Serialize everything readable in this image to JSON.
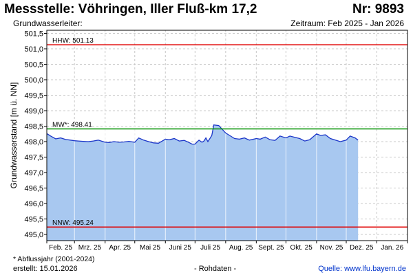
{
  "header": {
    "title": "Messstelle: Vöhringen, Iller Fluß-km 17,2",
    "number": "Nr: 9893",
    "subtitle_left": "Grundwasserleiter:",
    "subtitle_right": "Zeitraum: Feb 2025 - Jan 2026"
  },
  "footer": {
    "note": "* Abflussjahr (2001-2024)",
    "created": "erstellt:  15.01.2026",
    "raw": "- Rohdaten -",
    "source": "Quelle:  www.lfu.bayern.de"
  },
  "colors": {
    "fill": "#a8c8f0",
    "line": "#1a35c8",
    "hhw": "#e00000",
    "mw": "#009000",
    "nnw": "#e00000",
    "grid": "#c8c8c8"
  },
  "chart_data": {
    "type": "area",
    "ylabel": "Grundwasserstand [m ü. NN]",
    "ylim": [
      494.8,
      501.6
    ],
    "yticks": [
      "495,0",
      "495,5",
      "496,0",
      "496,5",
      "497,0",
      "497,5",
      "498,0",
      "498,5",
      "499,0",
      "499,5",
      "500,0",
      "500,5",
      "501,0",
      "501,5"
    ],
    "xticks": [
      "Feb. 25",
      "Mrz. 25",
      "Apr. 25",
      "Mai 25",
      "Juni 25",
      "Juli 25",
      "Aug. 25",
      "Sept. 25",
      "Okt. 25",
      "Nov. 25",
      "Dez. 25",
      "Jan. 26"
    ],
    "grid": true,
    "reference_lines": [
      {
        "label": "HHW: 501.13",
        "value": 501.13,
        "color": "#e00000"
      },
      {
        "label": "MW*: 498.41",
        "value": 498.41,
        "color": "#009000"
      },
      {
        "label": "NNW: 495.24",
        "value": 495.24,
        "color": "#e00000"
      }
    ],
    "series": [
      {
        "x": [
          "2025-02-01",
          "2025-02-05",
          "2025-02-10",
          "2025-02-15",
          "2025-02-20",
          "2025-02-25",
          "2025-03-01",
          "2025-03-05",
          "2025-03-10",
          "2025-03-15",
          "2025-03-20",
          "2025-03-25",
          "2025-04-01",
          "2025-04-05",
          "2025-04-10",
          "2025-04-15",
          "2025-04-20",
          "2025-04-25",
          "2025-05-01",
          "2025-05-05",
          "2025-05-10",
          "2025-05-15",
          "2025-05-20",
          "2025-05-25",
          "2025-06-01",
          "2025-06-05",
          "2025-06-10",
          "2025-06-15",
          "2025-06-20",
          "2025-06-25",
          "2025-06-28",
          "2025-07-01",
          "2025-07-05",
          "2025-07-08",
          "2025-07-10",
          "2025-07-12",
          "2025-07-14",
          "2025-07-16",
          "2025-07-18",
          "2025-07-20",
          "2025-07-25",
          "2025-08-01",
          "2025-08-05",
          "2025-08-10",
          "2025-08-15",
          "2025-08-20",
          "2025-08-25",
          "2025-09-01",
          "2025-09-05",
          "2025-09-10",
          "2025-09-15",
          "2025-09-20",
          "2025-09-25",
          "2025-10-01",
          "2025-10-05",
          "2025-10-10",
          "2025-10-15",
          "2025-10-20",
          "2025-10-25",
          "2025-11-01",
          "2025-11-05",
          "2025-11-10",
          "2025-11-15",
          "2025-11-20",
          "2025-11-25",
          "2025-12-01",
          "2025-12-05",
          "2025-12-10",
          "2025-12-13"
        ],
        "values": [
          498.26,
          498.18,
          498.09,
          498.12,
          498.07,
          498.05,
          498.03,
          498.02,
          498.01,
          498.0,
          498.02,
          498.05,
          497.98,
          497.97,
          498.0,
          497.98,
          497.99,
          498.01,
          497.98,
          498.12,
          498.05,
          498.0,
          497.96,
          497.95,
          498.08,
          498.06,
          498.1,
          498.02,
          498.04,
          497.97,
          497.92,
          497.92,
          498.05,
          497.98,
          498.02,
          498.12,
          498.0,
          498.1,
          498.2,
          498.54,
          498.52,
          498.28,
          498.2,
          498.1,
          498.08,
          498.12,
          498.05,
          498.1,
          498.08,
          498.15,
          498.06,
          498.04,
          498.18,
          498.12,
          498.18,
          498.14,
          498.1,
          498.02,
          498.06,
          498.25,
          498.2,
          498.22,
          498.1,
          498.05,
          498.0,
          498.05,
          498.18,
          498.12,
          498.05
        ]
      }
    ]
  }
}
